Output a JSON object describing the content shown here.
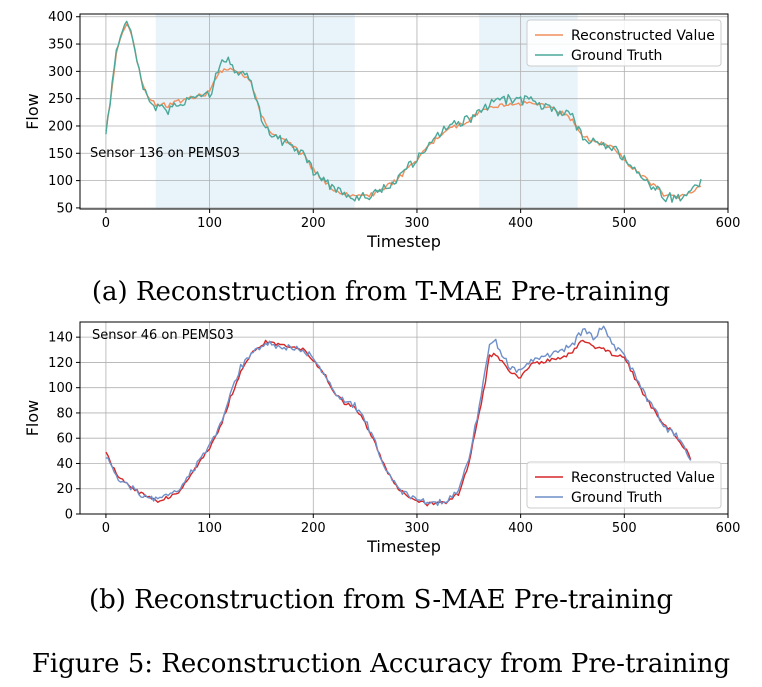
{
  "figure_caption": "Figure 5: Reconstruction Accuracy from Pre-training",
  "chart_data": [
    {
      "type": "line",
      "id": "a",
      "caption": "(a) Reconstruction from T-MAE Pre-training",
      "annotation": "Sensor 136 on PEMS03",
      "xlabel": "Timestep",
      "ylabel": "Flow",
      "xlim": [
        -25,
        600
      ],
      "ylim": [
        48,
        405
      ],
      "xticks": [
        0,
        100,
        200,
        300,
        400,
        500,
        600
      ],
      "yticks": [
        50,
        100,
        150,
        200,
        250,
        300,
        350,
        400
      ],
      "grid": true,
      "legend_position": "top-right",
      "shaded_regions": [
        [
          48,
          240
        ],
        [
          360,
          455
        ]
      ],
      "colors": {
        "reconstructed": "#f28e5c",
        "ground_truth": "#4aa89a",
        "shade": "#e9f4fa"
      },
      "series": [
        {
          "name": "Reconstructed Value",
          "x": [
            0,
            5,
            10,
            15,
            20,
            25,
            30,
            35,
            40,
            48,
            60,
            75,
            90,
            100,
            105,
            110,
            115,
            120,
            125,
            130,
            140,
            150,
            160,
            175,
            190,
            200,
            210,
            220,
            230,
            240,
            250,
            260,
            270,
            280,
            290,
            300,
            310,
            320,
            330,
            340,
            350,
            360,
            370,
            380,
            390,
            400,
            410,
            420,
            430,
            440,
            450,
            455,
            460,
            470,
            480,
            490,
            500,
            510,
            520,
            530,
            540,
            550,
            560,
            570,
            575
          ],
          "y": [
            190,
            260,
            330,
            365,
            390,
            370,
            320,
            275,
            255,
            240,
            238,
            248,
            255,
            262,
            282,
            300,
            305,
            302,
            300,
            298,
            280,
            220,
            185,
            170,
            148,
            120,
            100,
            82,
            76,
            74,
            72,
            76,
            88,
            100,
            118,
            138,
            160,
            180,
            195,
            200,
            210,
            225,
            232,
            236,
            240,
            240,
            242,
            238,
            232,
            224,
            210,
            195,
            184,
            172,
            166,
            158,
            138,
            120,
            104,
            88,
            72,
            70,
            74,
            85,
            90
          ]
        },
        {
          "name": "Ground Truth",
          "x": [
            0,
            5,
            10,
            15,
            20,
            25,
            30,
            35,
            40,
            48,
            60,
            75,
            90,
            100,
            105,
            110,
            115,
            120,
            125,
            130,
            140,
            150,
            160,
            175,
            190,
            200,
            210,
            220,
            230,
            240,
            250,
            260,
            270,
            280,
            290,
            300,
            310,
            320,
            330,
            340,
            350,
            360,
            370,
            380,
            390,
            400,
            410,
            420,
            430,
            440,
            450,
            455,
            460,
            470,
            480,
            490,
            500,
            510,
            520,
            530,
            540,
            550,
            560,
            570,
            575
          ],
          "y": [
            188,
            262,
            335,
            372,
            396,
            375,
            318,
            270,
            252,
            232,
            228,
            245,
            250,
            255,
            285,
            310,
            325,
            312,
            296,
            300,
            282,
            218,
            182,
            168,
            150,
            118,
            102,
            84,
            74,
            70,
            70,
            78,
            90,
            98,
            122,
            140,
            162,
            182,
            198,
            205,
            212,
            228,
            240,
            244,
            252,
            245,
            255,
            236,
            230,
            226,
            214,
            198,
            180,
            170,
            168,
            160,
            140,
            118,
            102,
            86,
            70,
            68,
            72,
            88,
            96
          ]
        }
      ]
    },
    {
      "type": "line",
      "id": "b",
      "caption": "(b) Reconstruction from S-MAE Pre-training",
      "annotation": "Sensor 46 on PEMS03",
      "xlabel": "Timestep",
      "ylabel": "Flow",
      "xlim": [
        -25,
        600
      ],
      "ylim": [
        0,
        152
      ],
      "xticks": [
        0,
        100,
        200,
        300,
        400,
        500,
        600
      ],
      "yticks": [
        0,
        20,
        40,
        60,
        80,
        100,
        120,
        140
      ],
      "grid": true,
      "legend_position": "bottom-right",
      "shaded_regions": [],
      "colors": {
        "reconstructed": "#d62728",
        "ground_truth": "#6f8fc9"
      },
      "series": [
        {
          "name": "Reconstructed Value",
          "x": [
            0,
            5,
            10,
            20,
            30,
            40,
            50,
            60,
            70,
            80,
            90,
            100,
            110,
            120,
            130,
            140,
            150,
            155,
            160,
            170,
            180,
            190,
            200,
            210,
            220,
            230,
            240,
            250,
            260,
            270,
            280,
            290,
            300,
            310,
            320,
            330,
            340,
            350,
            360,
            365,
            370,
            375,
            380,
            390,
            400,
            410,
            420,
            430,
            440,
            450,
            460,
            470,
            480,
            490,
            500,
            510,
            520,
            530,
            540,
            550,
            560,
            565
          ],
          "y": [
            50,
            40,
            32,
            25,
            18,
            13,
            10,
            13,
            18,
            28,
            40,
            52,
            68,
            92,
            112,
            126,
            134,
            137,
            135,
            133,
            133,
            130,
            122,
            112,
            96,
            88,
            84,
            72,
            55,
            35,
            22,
            14,
            10,
            8,
            8,
            10,
            16,
            40,
            80,
            100,
            125,
            127,
            122,
            112,
            108,
            118,
            120,
            122,
            124,
            128,
            138,
            132,
            130,
            126,
            124,
            108,
            92,
            80,
            70,
            62,
            50,
            42
          ]
        },
        {
          "name": "Ground Truth",
          "x": [
            0,
            5,
            10,
            20,
            30,
            40,
            50,
            60,
            70,
            80,
            90,
            100,
            110,
            120,
            130,
            140,
            150,
            155,
            160,
            170,
            180,
            190,
            200,
            210,
            220,
            230,
            240,
            250,
            260,
            270,
            280,
            290,
            300,
            310,
            320,
            330,
            340,
            350,
            360,
            365,
            370,
            375,
            380,
            390,
            400,
            410,
            420,
            430,
            440,
            450,
            460,
            470,
            480,
            490,
            500,
            510,
            520,
            530,
            540,
            550,
            560,
            565
          ],
          "y": [
            46,
            38,
            30,
            24,
            17,
            12,
            11,
            14,
            19,
            30,
            42,
            55,
            70,
            96,
            116,
            128,
            133,
            135,
            134,
            132,
            132,
            129,
            124,
            110,
            98,
            90,
            86,
            74,
            56,
            36,
            22,
            15,
            11,
            9,
            9,
            11,
            18,
            44,
            84,
            110,
            132,
            138,
            128,
            116,
            112,
            122,
            124,
            126,
            130,
            134,
            146,
            140,
            148,
            132,
            126,
            110,
            94,
            82,
            68,
            62,
            48,
            40
          ]
        }
      ]
    }
  ]
}
